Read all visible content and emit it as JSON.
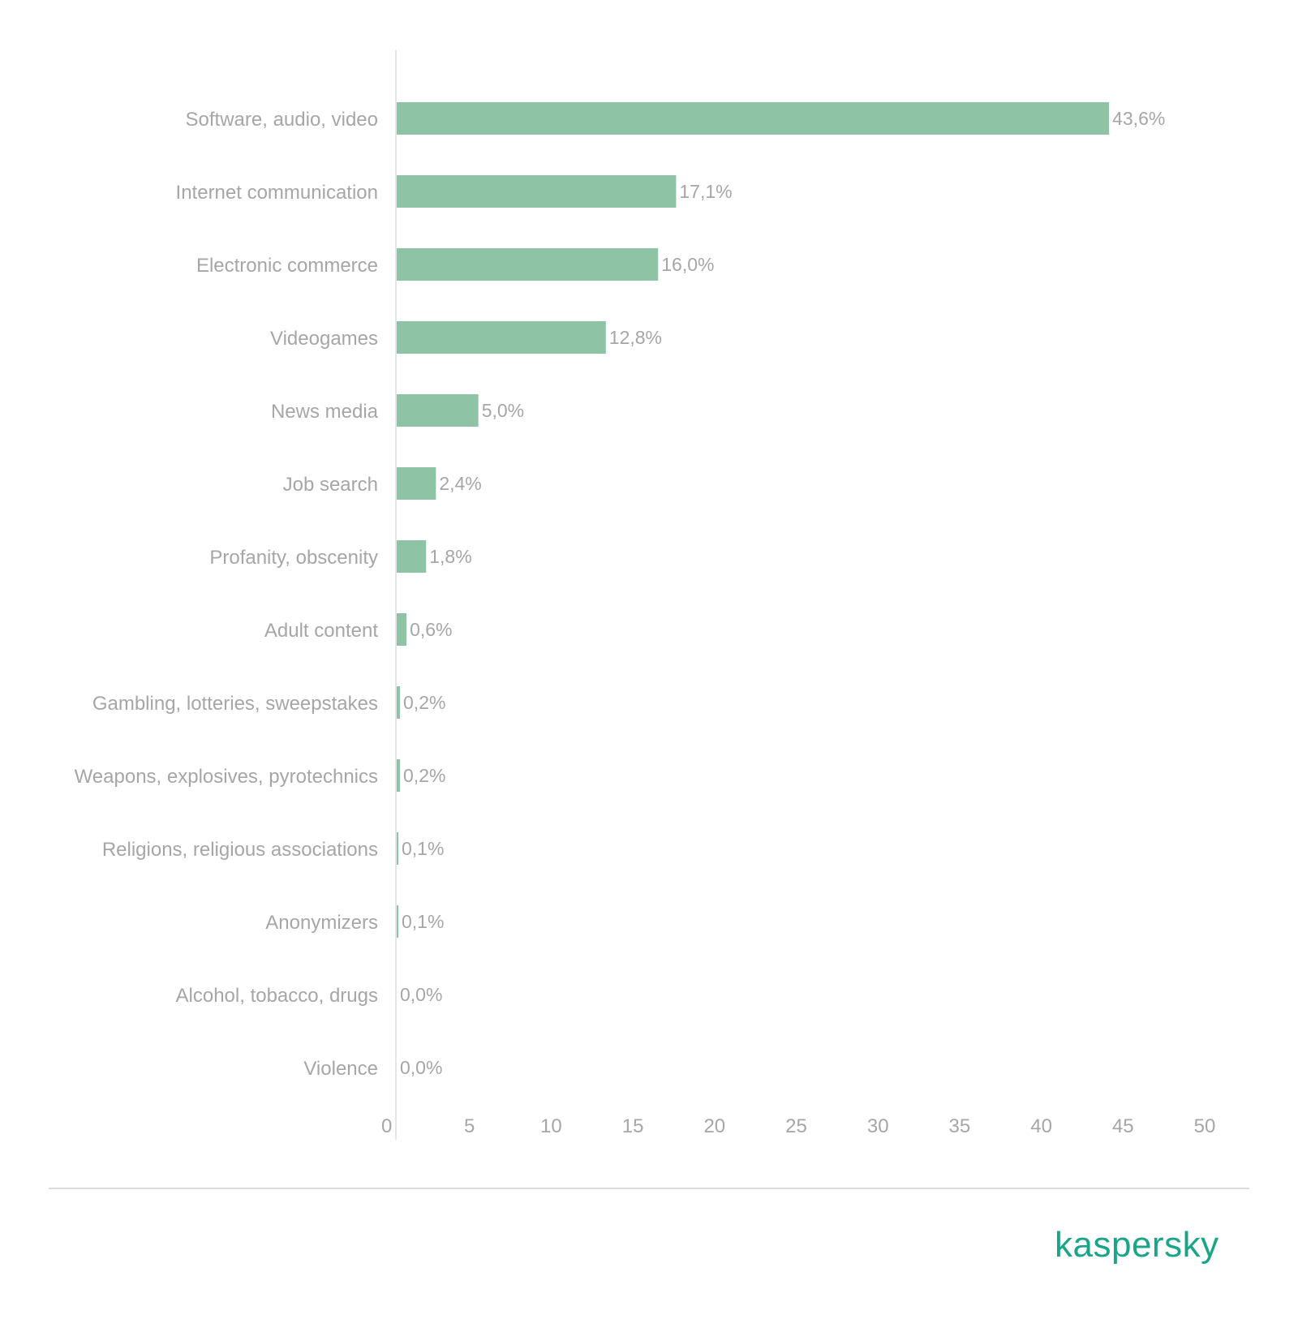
{
  "chart_data": {
    "type": "bar",
    "orientation": "horizontal",
    "categories": [
      "Software, audio, video",
      "Internet communication",
      "Electronic commerce",
      "Videogames",
      "News media",
      "Job search",
      "Profanity, obscenity",
      "Adult content",
      "Gambling, lotteries, sweepstakes",
      "Weapons, explosives, pyrotechnics",
      "Religions, religious associations",
      "Anonymizers",
      "Alcohol, tobacco, drugs",
      "Violence"
    ],
    "values": [
      43.6,
      17.1,
      16.0,
      12.8,
      5.0,
      2.4,
      1.8,
      0.6,
      0.2,
      0.2,
      0.1,
      0.1,
      0.0,
      0.0
    ],
    "value_labels": [
      "43,6%",
      "17,1%",
      "16,0%",
      "12,8%",
      "5,0%",
      "2,4%",
      "1,8%",
      "0,6%",
      "0,2%",
      "0,2%",
      "0,1%",
      "0,1%",
      "0,0%",
      "0,0%"
    ],
    "xticks": [
      0,
      5,
      10,
      15,
      20,
      25,
      30,
      35,
      40,
      45,
      50
    ],
    "xlim": [
      0,
      50
    ],
    "title": "",
    "xlabel": "",
    "ylabel": "",
    "grid": false,
    "colors": {
      "bar": "#8fc3a6",
      "text": "#a6a6a6",
      "axis": "#e6e6e6"
    }
  },
  "footer": {
    "brand": "kaspersky",
    "brand_color": "#1aa589"
  }
}
